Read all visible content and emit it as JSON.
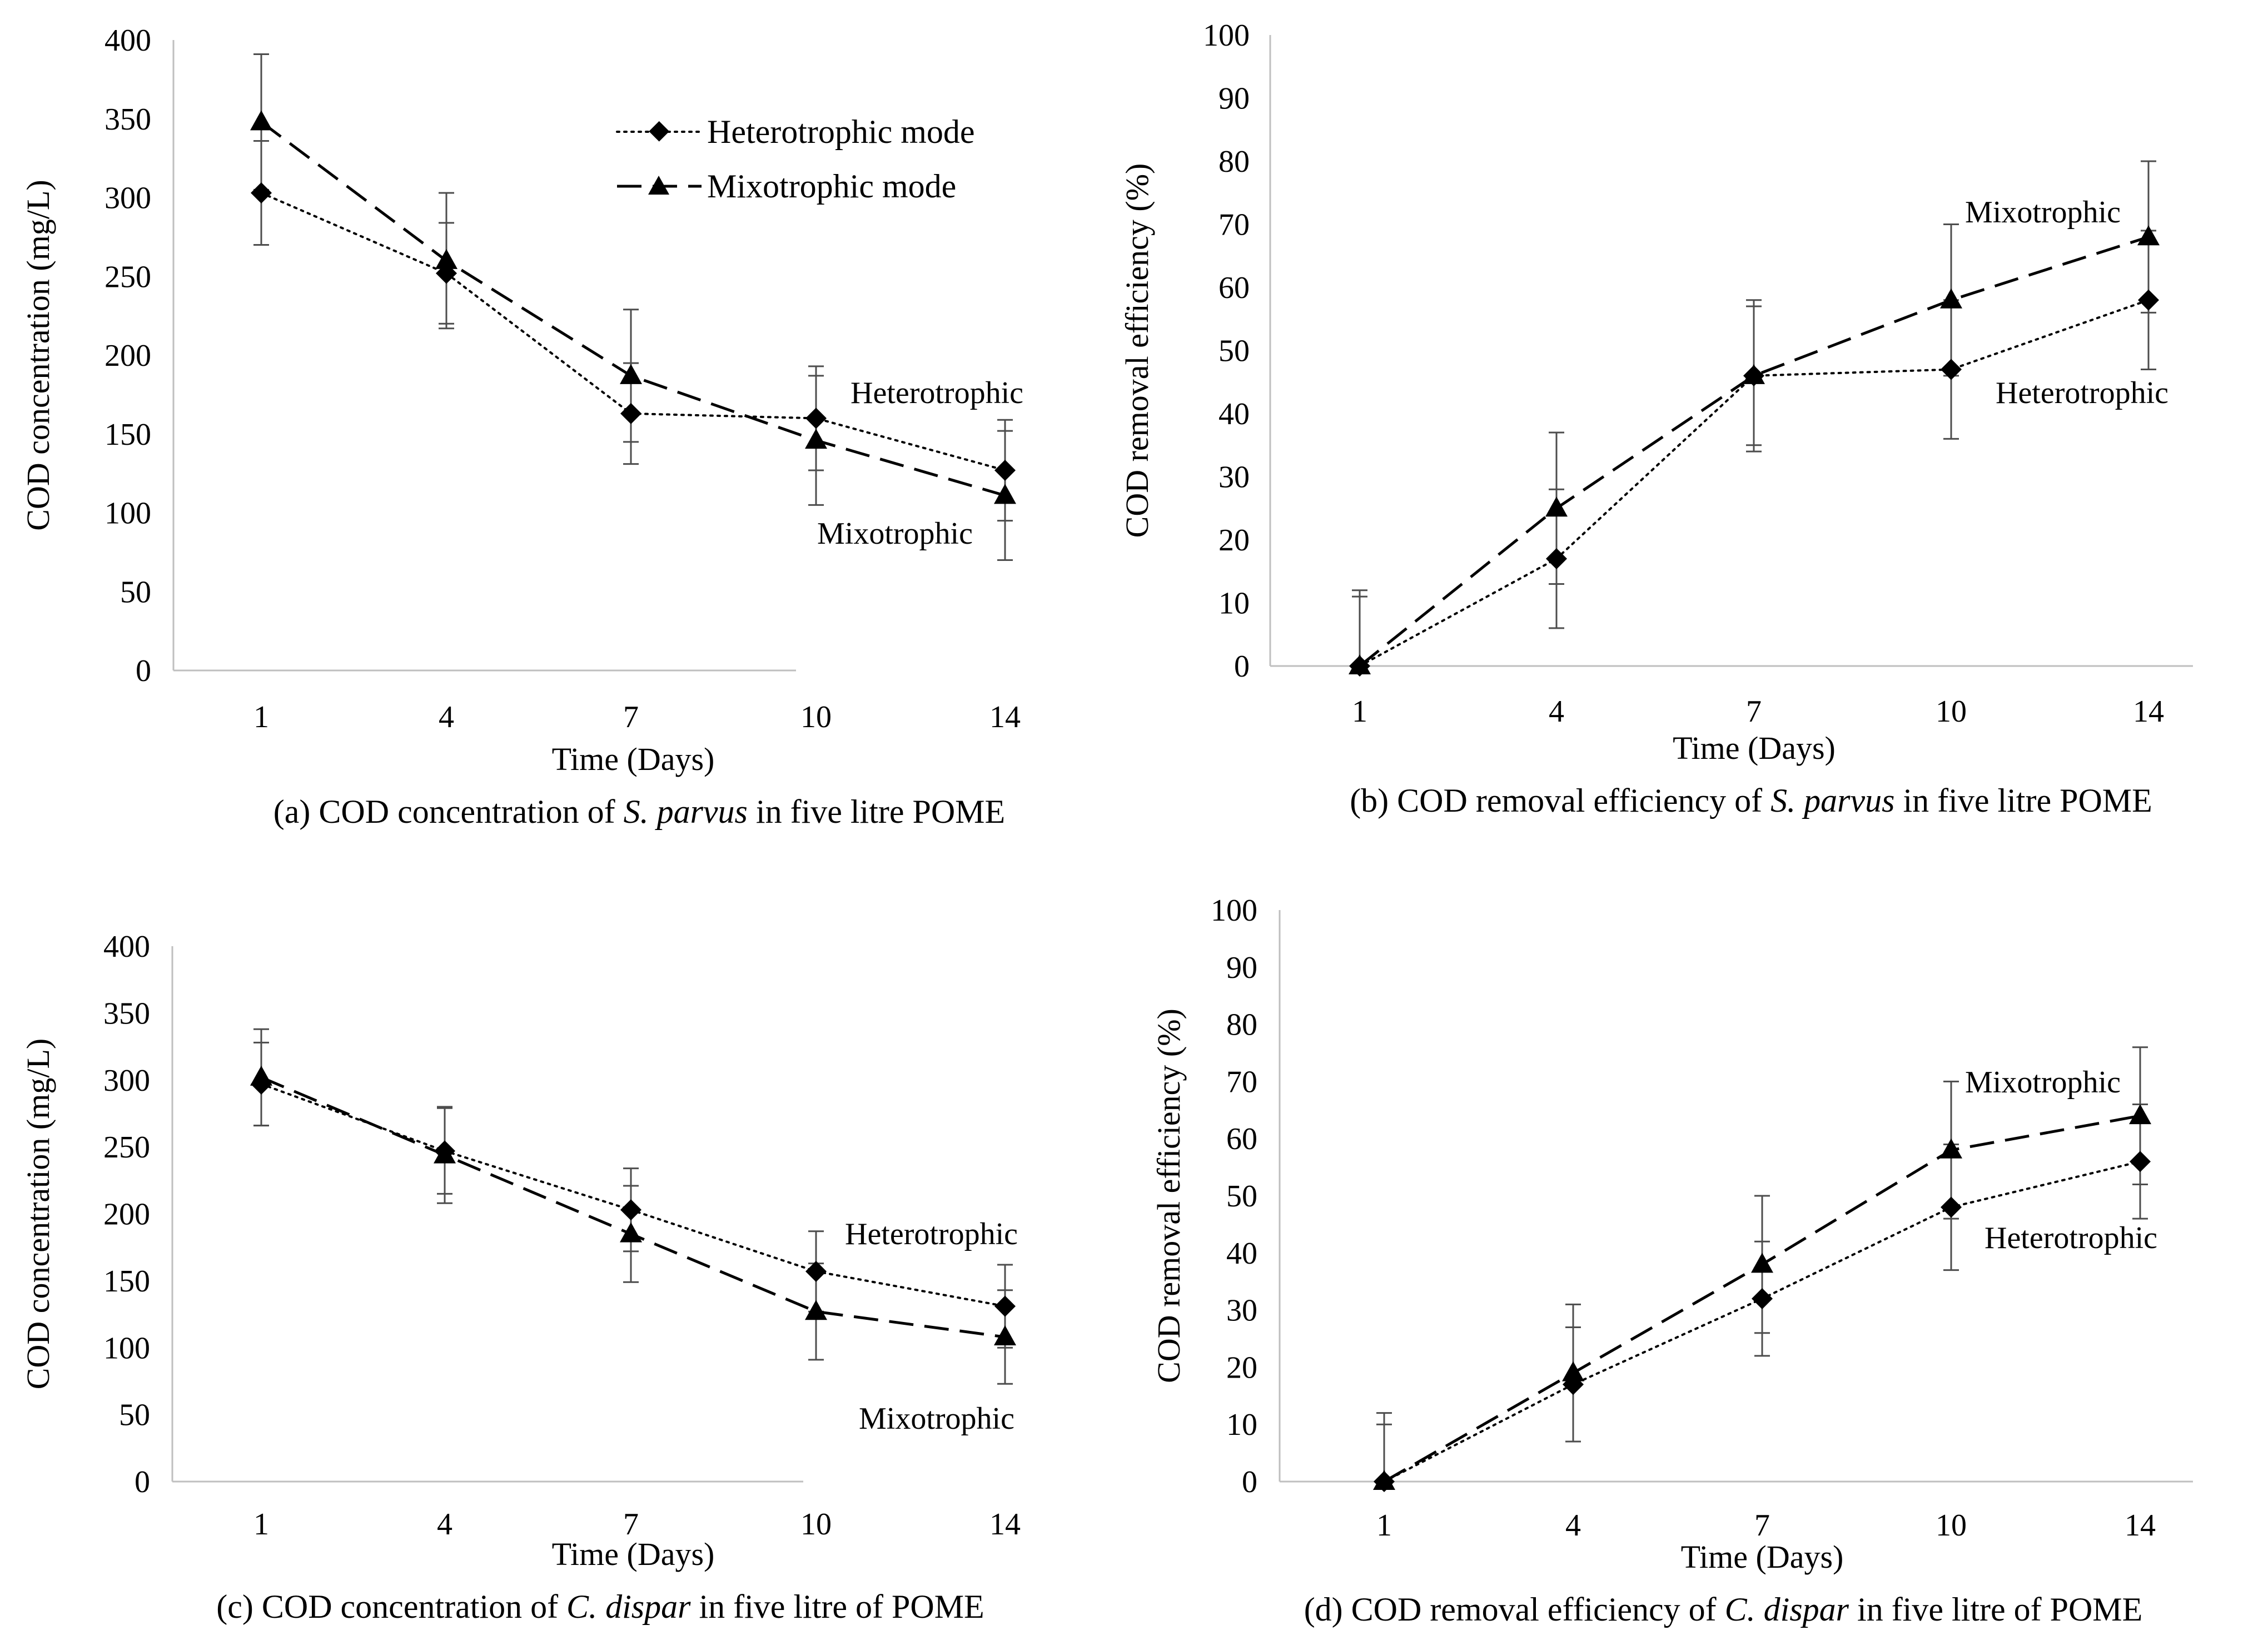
{
  "legend": [
    "Heterotrophic mode",
    "Mixotrophic mode"
  ],
  "panels": [
    {
      "ylabel": "COD concentration  (mg/L)",
      "xlabel": "Time  (Days)",
      "annotations": [
        "Heterotrophic",
        "Mixotrophic"
      ],
      "caption": {
        "prefix": "(a) COD concentration  of ",
        "species": "S. parvus",
        "suffix": " in five  litre  POME"
      }
    },
    {
      "ylabel": "COD removal  efficiency  (%)",
      "xlabel": "Time  (Days)",
      "annotations": [
        "Mixotrophic",
        "Heterotrophic"
      ],
      "caption": {
        "prefix": "(b) COD removal  efficiency  of ",
        "species": "S. parvus",
        "suffix": " in five  litre  POME"
      }
    },
    {
      "ylabel": "COD concentration  (mg/L)",
      "xlabel": "Time  (Days)",
      "annotations": [
        "Heterotrophic",
        "Mixotrophic"
      ],
      "caption": {
        "prefix": "(c) COD concentration  of ",
        "species": "C. dispar",
        "suffix": " in five  litre  of POME"
      }
    },
    {
      "ylabel": "COD removal  efficiency  (%)",
      "xlabel": "Time  (Days)",
      "annotations": [
        "Mixotrophic",
        "Heterotrophic"
      ],
      "caption": {
        "prefix": "(d) COD removal  efficiency  of ",
        "species": "C. dispar",
        "suffix": " in five  litre  of POME"
      }
    }
  ],
  "chart_data": [
    {
      "type": "line",
      "title": "(a) COD concentration of S. parvus in five litre POME",
      "xlabel": "Time  (Days)",
      "ylabel": "COD concentration  (mg/L)",
      "categories": [
        "1",
        "4",
        "7",
        "10",
        "14"
      ],
      "ylim": [
        0,
        400
      ],
      "yticks": [
        0,
        50,
        100,
        150,
        200,
        250,
        300,
        350,
        400
      ],
      "series": [
        {
          "name": "Heterotrophic mode",
          "marker": "diamond",
          "values": [
            303,
            252,
            163,
            160,
            127
          ],
          "errors": [
            33,
            32,
            32,
            33,
            32
          ]
        },
        {
          "name": "Mixotrophic mode",
          "marker": "triangle",
          "values": [
            348,
            260,
            187,
            146,
            111
          ],
          "errors": [
            43,
            43,
            42,
            41,
            41
          ]
        }
      ]
    },
    {
      "type": "line",
      "title": "(b) COD removal efficiency of S. parvus in five litre POME",
      "xlabel": "Time  (Days)",
      "ylabel": "COD removal  efficiency  (%)",
      "categories": [
        "1",
        "4",
        "7",
        "10",
        "14"
      ],
      "ylim": [
        0,
        100
      ],
      "yticks": [
        0,
        10,
        20,
        30,
        40,
        50,
        60,
        70,
        80,
        90,
        100
      ],
      "series": [
        {
          "name": "Heterotrophic mode",
          "marker": "diamond",
          "values": [
            0,
            17,
            46,
            47,
            58
          ],
          "errors": [
            11,
            11,
            11,
            11,
            11
          ]
        },
        {
          "name": "Mixotrophic mode",
          "marker": "triangle",
          "values": [
            0,
            25,
            46,
            58,
            68
          ],
          "errors": [
            12,
            12,
            12,
            12,
            12
          ]
        }
      ]
    },
    {
      "type": "line",
      "title": "(c) COD concentration of C. dispar in five litre of POME",
      "xlabel": "Time  (Days)",
      "ylabel": "COD concentration  (mg/L)",
      "categories": [
        "1",
        "4",
        "7",
        "10",
        "14"
      ],
      "ylim": [
        0,
        400
      ],
      "yticks": [
        0,
        50,
        100,
        150,
        200,
        250,
        300,
        350,
        400
      ],
      "series": [
        {
          "name": "Heterotrophic mode",
          "marker": "diamond",
          "values": [
            297,
            247,
            203,
            157,
            131
          ],
          "errors": [
            31,
            32,
            31,
            30,
            31
          ]
        },
        {
          "name": "Mixotrophic mode",
          "marker": "triangle",
          "values": [
            302,
            244,
            185,
            127,
            108
          ],
          "errors": [
            36,
            36,
            36,
            36,
            35
          ]
        }
      ]
    },
    {
      "type": "line",
      "title": "(d) COD removal efficiency of C. dispar in five litre of POME",
      "xlabel": "Time  (Days)",
      "ylabel": "COD removal  efficiency  (%)",
      "categories": [
        "1",
        "4",
        "7",
        "10",
        "14"
      ],
      "ylim": [
        0,
        100
      ],
      "yticks": [
        0,
        10,
        20,
        30,
        40,
        50,
        60,
        70,
        80,
        90,
        100
      ],
      "series": [
        {
          "name": "Heterotrophic mode",
          "marker": "diamond",
          "values": [
            0,
            17,
            32,
            48,
            56
          ],
          "errors": [
            10,
            10,
            10,
            11,
            10
          ]
        },
        {
          "name": "Mixotrophic mode",
          "marker": "triangle",
          "values": [
            0,
            19,
            38,
            58,
            64
          ],
          "errors": [
            12,
            12,
            12,
            12,
            12
          ]
        }
      ]
    }
  ]
}
